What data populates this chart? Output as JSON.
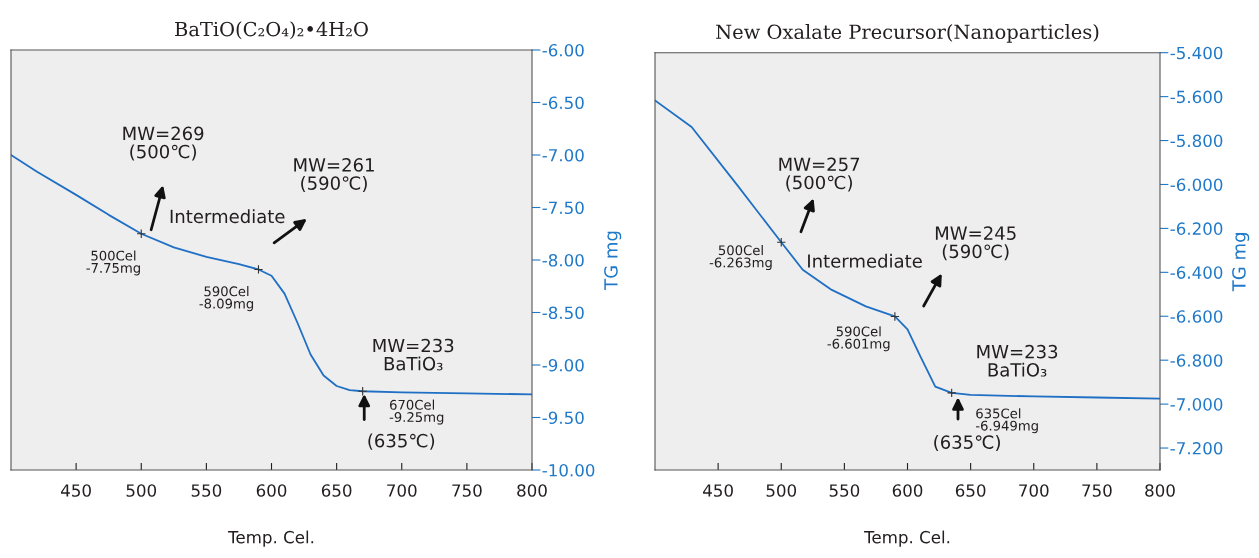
{
  "chart_data": [
    {
      "type": "line",
      "title": "BaTiO(C₂O₄)₂•4H₂O",
      "xlabel": "Temp. Cel.",
      "ylabel": "TG mg",
      "x": [
        400,
        420,
        450,
        475,
        500,
        525,
        550,
        575,
        590,
        600,
        610,
        620,
        630,
        640,
        650,
        660,
        670,
        700,
        750,
        800
      ],
      "series": [
        {
          "color": "#1f6fc4",
          "values": [
            -7.0,
            -7.16,
            -7.38,
            -7.57,
            -7.75,
            -7.88,
            -7.97,
            -8.04,
            -8.09,
            -8.15,
            -8.32,
            -8.6,
            -8.9,
            -9.1,
            -9.2,
            -9.24,
            -9.25,
            -9.26,
            -9.27,
            -9.28
          ]
        }
      ],
      "xlim": [
        400,
        800
      ],
      "xticks": [
        450,
        500,
        550,
        600,
        650,
        700,
        750,
        800
      ],
      "ylim": [
        -10.0,
        -6.0
      ],
      "yticks": [
        {
          "value": -6.0,
          "label": "-6.00"
        },
        {
          "value": -6.5,
          "label": "-6.50"
        },
        {
          "value": -7.0,
          "label": "-7.00"
        },
        {
          "value": -7.5,
          "label": "-7.50"
        },
        {
          "value": -8.0,
          "label": "-8.00"
        },
        {
          "value": -8.5,
          "label": "-8.50"
        },
        {
          "value": -9.0,
          "label": "-9.00"
        },
        {
          "value": -9.5,
          "label": "-9.50"
        },
        {
          "value": -10.0,
          "label": "-10.00"
        }
      ],
      "grid": false,
      "legend": false,
      "annotations": [
        {
          "text": "500Cel\n-7.75mg",
          "x": 500,
          "y": -7.75
        },
        {
          "text": "590Cel\n-8.09mg",
          "x": 590,
          "y": -8.09
        },
        {
          "text": "670Cel\n-9.25mg",
          "x": 670,
          "y": -9.25
        },
        "MW=269\n(500℃)",
        "Intermediate",
        "MW=261\n(590℃)",
        "MW=233\nBaTiO₃",
        "(635℃)"
      ]
    },
    {
      "type": "line",
      "title": "New Oxalate Precursor(Nanoparticles)",
      "xlabel": "Temp. Cel.",
      "ylabel": "TG mg",
      "x": [
        400,
        429,
        465,
        500,
        517,
        540,
        567,
        590,
        600,
        610,
        622,
        635,
        650,
        700,
        750,
        800
      ],
      "series": [
        {
          "color": "#1f6fc4",
          "values": [
            -5.617,
            -5.738,
            -6.002,
            -6.263,
            -6.388,
            -6.48,
            -6.555,
            -6.601,
            -6.66,
            -6.78,
            -6.92,
            -6.949,
            -6.958,
            -6.965,
            -6.97,
            -6.975
          ]
        }
      ],
      "xlim": [
        400,
        800
      ],
      "xticks": [
        450,
        500,
        550,
        600,
        650,
        700,
        750,
        800
      ],
      "ylim": [
        -7.3,
        -5.4
      ],
      "yticks": [
        {
          "value": -5.4,
          "label": "-5.400"
        },
        {
          "value": -5.6,
          "label": "-5.600"
        },
        {
          "value": -5.8,
          "label": "-5.800"
        },
        {
          "value": -6.0,
          "label": "-6.000"
        },
        {
          "value": -6.2,
          "label": "-6.200"
        },
        {
          "value": -6.4,
          "label": "-6.400"
        },
        {
          "value": -6.6,
          "label": "-6.600"
        },
        {
          "value": -6.8,
          "label": "-6.800"
        },
        {
          "value": -7.0,
          "label": "-7.000"
        },
        {
          "value": -7.2,
          "label": "-7.200"
        }
      ],
      "grid": false,
      "legend": false,
      "annotations": [
        {
          "text": "500Cel\n-6.263mg",
          "x": 500,
          "y": -6.263
        },
        {
          "text": "590Cel\n-6.601mg",
          "x": 590,
          "y": -6.601
        },
        {
          "text": "635Cel\n-6.949mg",
          "x": 635,
          "y": -6.949
        },
        "MW=257\n(500℃)",
        "Intermediate",
        "MW=245\n(590℃)",
        "MW=233\nBaTiO₃",
        "(635℃)"
      ]
    }
  ]
}
